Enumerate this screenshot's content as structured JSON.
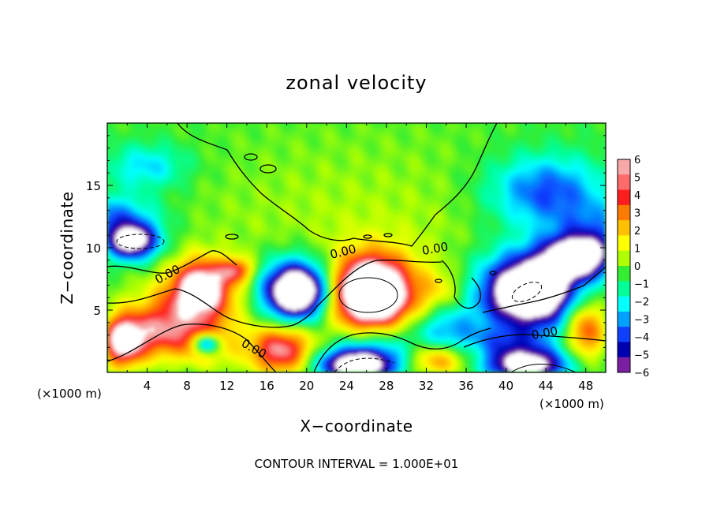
{
  "chart_data": {
    "type": "heatmap",
    "title": "zonal velocity",
    "xlabel": "X−coordinate",
    "ylabel": "Z−coordinate",
    "x_unit_left": "(×1000 m)",
    "x_unit_right": "(×1000 m)",
    "footer": "CONTOUR INTERVAL = 1.000E+01",
    "xlim": [
      0,
      50
    ],
    "ylim": [
      0,
      20
    ],
    "x_ticks": [
      "4",
      "8",
      "12",
      "16",
      "20",
      "24",
      "28",
      "32",
      "36",
      "40",
      "44",
      "48"
    ],
    "y_ticks": [
      "5",
      "10",
      "15"
    ],
    "contour_labels": [
      "0.00",
      "0.00",
      "0.00",
      "0.00",
      "0.00"
    ],
    "colorbar": {
      "ticks": [
        "6",
        "5",
        "4",
        "3",
        "2",
        "1",
        "0",
        "−1",
        "−2",
        "−3",
        "−4",
        "−5",
        "−6"
      ],
      "range": [
        -6,
        6
      ],
      "colors": [
        "#f7a8a8",
        "#ff6a6a",
        "#ff1e1e",
        "#ff7a00",
        "#ffc000",
        "#ffff00",
        "#b0ff00",
        "#33ee33",
        "#00ff99",
        "#00ffff",
        "#00a0ff",
        "#1040ff",
        "#0000b0",
        "#7b1fa2"
      ]
    },
    "blobs": [
      {
        "cx": 25,
        "cy": 10.8,
        "rx": 24,
        "ry": 11,
        "v": 1.0
      },
      {
        "cx": 4,
        "cy": 16.5,
        "rx": 5,
        "ry": 2.2,
        "v": -2.5
      },
      {
        "cx": 0,
        "cy": 12.5,
        "rx": 6,
        "ry": 2.2,
        "v": -3.5
      },
      {
        "cx": 44,
        "cy": 14.5,
        "rx": 7,
        "ry": 3.5,
        "v": -4.2
      },
      {
        "cx": 49,
        "cy": 11,
        "rx": 5,
        "ry": 3,
        "v": -3.0
      },
      {
        "cx": 2.5,
        "cy": 10.5,
        "rx": 3.2,
        "ry": 1.8,
        "v": -8
      },
      {
        "cx": 9.5,
        "cy": 7.0,
        "rx": 3.5,
        "ry": 2.6,
        "v": 6.5
      },
      {
        "cx": 8,
        "cy": 5,
        "rx": 6,
        "ry": 3,
        "v": 3.5
      },
      {
        "cx": 19,
        "cy": 6.5,
        "rx": 3.6,
        "ry": 2.5,
        "v": -8
      },
      {
        "cx": 19,
        "cy": 6.5,
        "rx": 4.8,
        "ry": 3.6,
        "v": -4
      },
      {
        "cx": 26.5,
        "cy": 6.5,
        "rx": 4.2,
        "ry": 3.2,
        "v": 8
      },
      {
        "cx": 26.5,
        "cy": 5.5,
        "rx": 6.5,
        "ry": 4.5,
        "v": 4
      },
      {
        "cx": 42.5,
        "cy": 6.5,
        "rx": 5,
        "ry": 3,
        "v": -8
      },
      {
        "cx": 47,
        "cy": 9.2,
        "rx": 4,
        "ry": 2,
        "v": -8
      },
      {
        "cx": 42,
        "cy": 6.5,
        "rx": 7,
        "ry": 4.5,
        "v": -4
      },
      {
        "cx": 1.5,
        "cy": 2.5,
        "rx": 2.5,
        "ry": 2.5,
        "v": 7
      },
      {
        "cx": 5,
        "cy": 3,
        "rx": 4,
        "ry": 2.5,
        "v": 4
      },
      {
        "cx": 10,
        "cy": 2.3,
        "rx": 1.6,
        "ry": 1.0,
        "v": -7
      },
      {
        "cx": 10,
        "cy": 2.3,
        "rx": 3.5,
        "ry": 2.2,
        "v": 3
      },
      {
        "cx": 17.5,
        "cy": 1.8,
        "rx": 4,
        "ry": 2.5,
        "v": 6
      },
      {
        "cx": 25,
        "cy": 0.6,
        "rx": 5,
        "ry": 1.6,
        "v": -8
      },
      {
        "cx": 27,
        "cy": 2.2,
        "rx": 6,
        "ry": 2.8,
        "v": -3.5
      },
      {
        "cx": 34,
        "cy": 3.5,
        "rx": 4,
        "ry": 2.5,
        "v": -3
      },
      {
        "cx": 33,
        "cy": 1,
        "rx": 4,
        "ry": 1.6,
        "v": 4
      },
      {
        "cx": 42,
        "cy": 0.6,
        "rx": 5,
        "ry": 1.6,
        "v": -8
      },
      {
        "cx": 48,
        "cy": 3.5,
        "rx": 2.5,
        "ry": 3,
        "v": 5
      },
      {
        "cx": 40,
        "cy": 2.5,
        "rx": 5,
        "ry": 1.5,
        "v": -2.5
      },
      {
        "cx": 13,
        "cy": 8.2,
        "rx": 2,
        "ry": 1.2,
        "v": 4
      },
      {
        "cx": 33.5,
        "cy": 6.5,
        "rx": 3,
        "ry": 2,
        "v": 1.5
      }
    ]
  }
}
